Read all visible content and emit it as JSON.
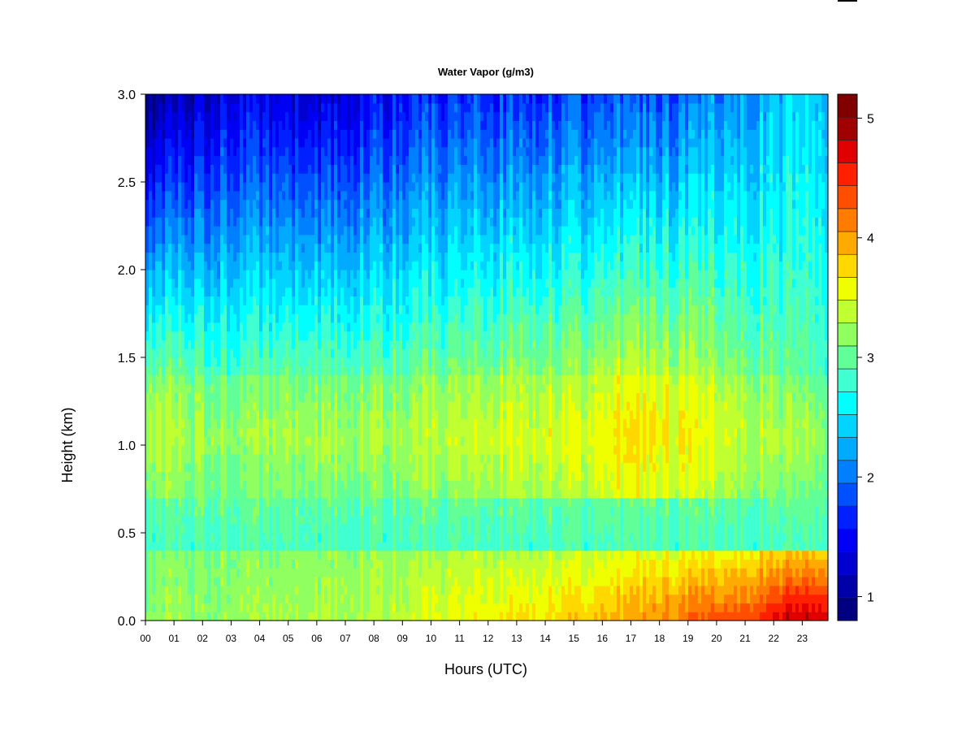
{
  "chart_data": {
    "type": "heatmap",
    "title": "Water Vapor (g/m3)",
    "xlabel": "Hours (UTC)",
    "ylabel": "Height (km)",
    "xlim": [
      0,
      23.9
    ],
    "ylim": [
      0.0,
      3.0
    ],
    "x_ticks": [
      "00",
      "01",
      "02",
      "03",
      "04",
      "05",
      "06",
      "07",
      "08",
      "09",
      "10",
      "11",
      "12",
      "13",
      "14",
      "15",
      "16",
      "17",
      "18",
      "19",
      "20",
      "21",
      "22",
      "23"
    ],
    "y_ticks": [
      "0.0",
      "0.5",
      "1.0",
      "1.5",
      "2.0",
      "2.5",
      "3.0"
    ],
    "colorbar": {
      "min": 0.8,
      "max": 5.2,
      "ticks": [
        "1",
        "2",
        "3",
        "4",
        "5"
      ],
      "levels": 22,
      "colors": [
        "#000080",
        "#0000a8",
        "#0000d0",
        "#0000f5",
        "#0020ff",
        "#0050ff",
        "#0080ff",
        "#00aaff",
        "#00d4ff",
        "#00ffff",
        "#40ffd0",
        "#60ff98",
        "#90ff60",
        "#c0ff30",
        "#f0ff00",
        "#ffd800",
        "#ffaa00",
        "#ff7c00",
        "#ff4e00",
        "#ff2000",
        "#e00000",
        "#a00000",
        "#800000"
      ]
    },
    "grid": false,
    "legend": "colorbar-right",
    "description_profile": {
      "hours": [
        0,
        3,
        6,
        9,
        11,
        13,
        15,
        17,
        19,
        21,
        22.5,
        23.9
      ],
      "surface_value": [
        3.2,
        3.2,
        3.3,
        3.4,
        3.6,
        3.7,
        3.8,
        4.0,
        4.2,
        4.4,
        4.8,
        4.8
      ],
      "mid_1km_value": [
        3.4,
        3.2,
        3.3,
        3.3,
        3.4,
        3.5,
        3.5,
        3.7,
        3.6,
        3.4,
        3.3,
        3.2
      ],
      "top_3km_value": [
        1.0,
        1.4,
        1.3,
        1.6,
        1.7,
        1.7,
        1.8,
        1.8,
        1.9,
        2.2,
        2.4,
        2.4
      ]
    }
  }
}
